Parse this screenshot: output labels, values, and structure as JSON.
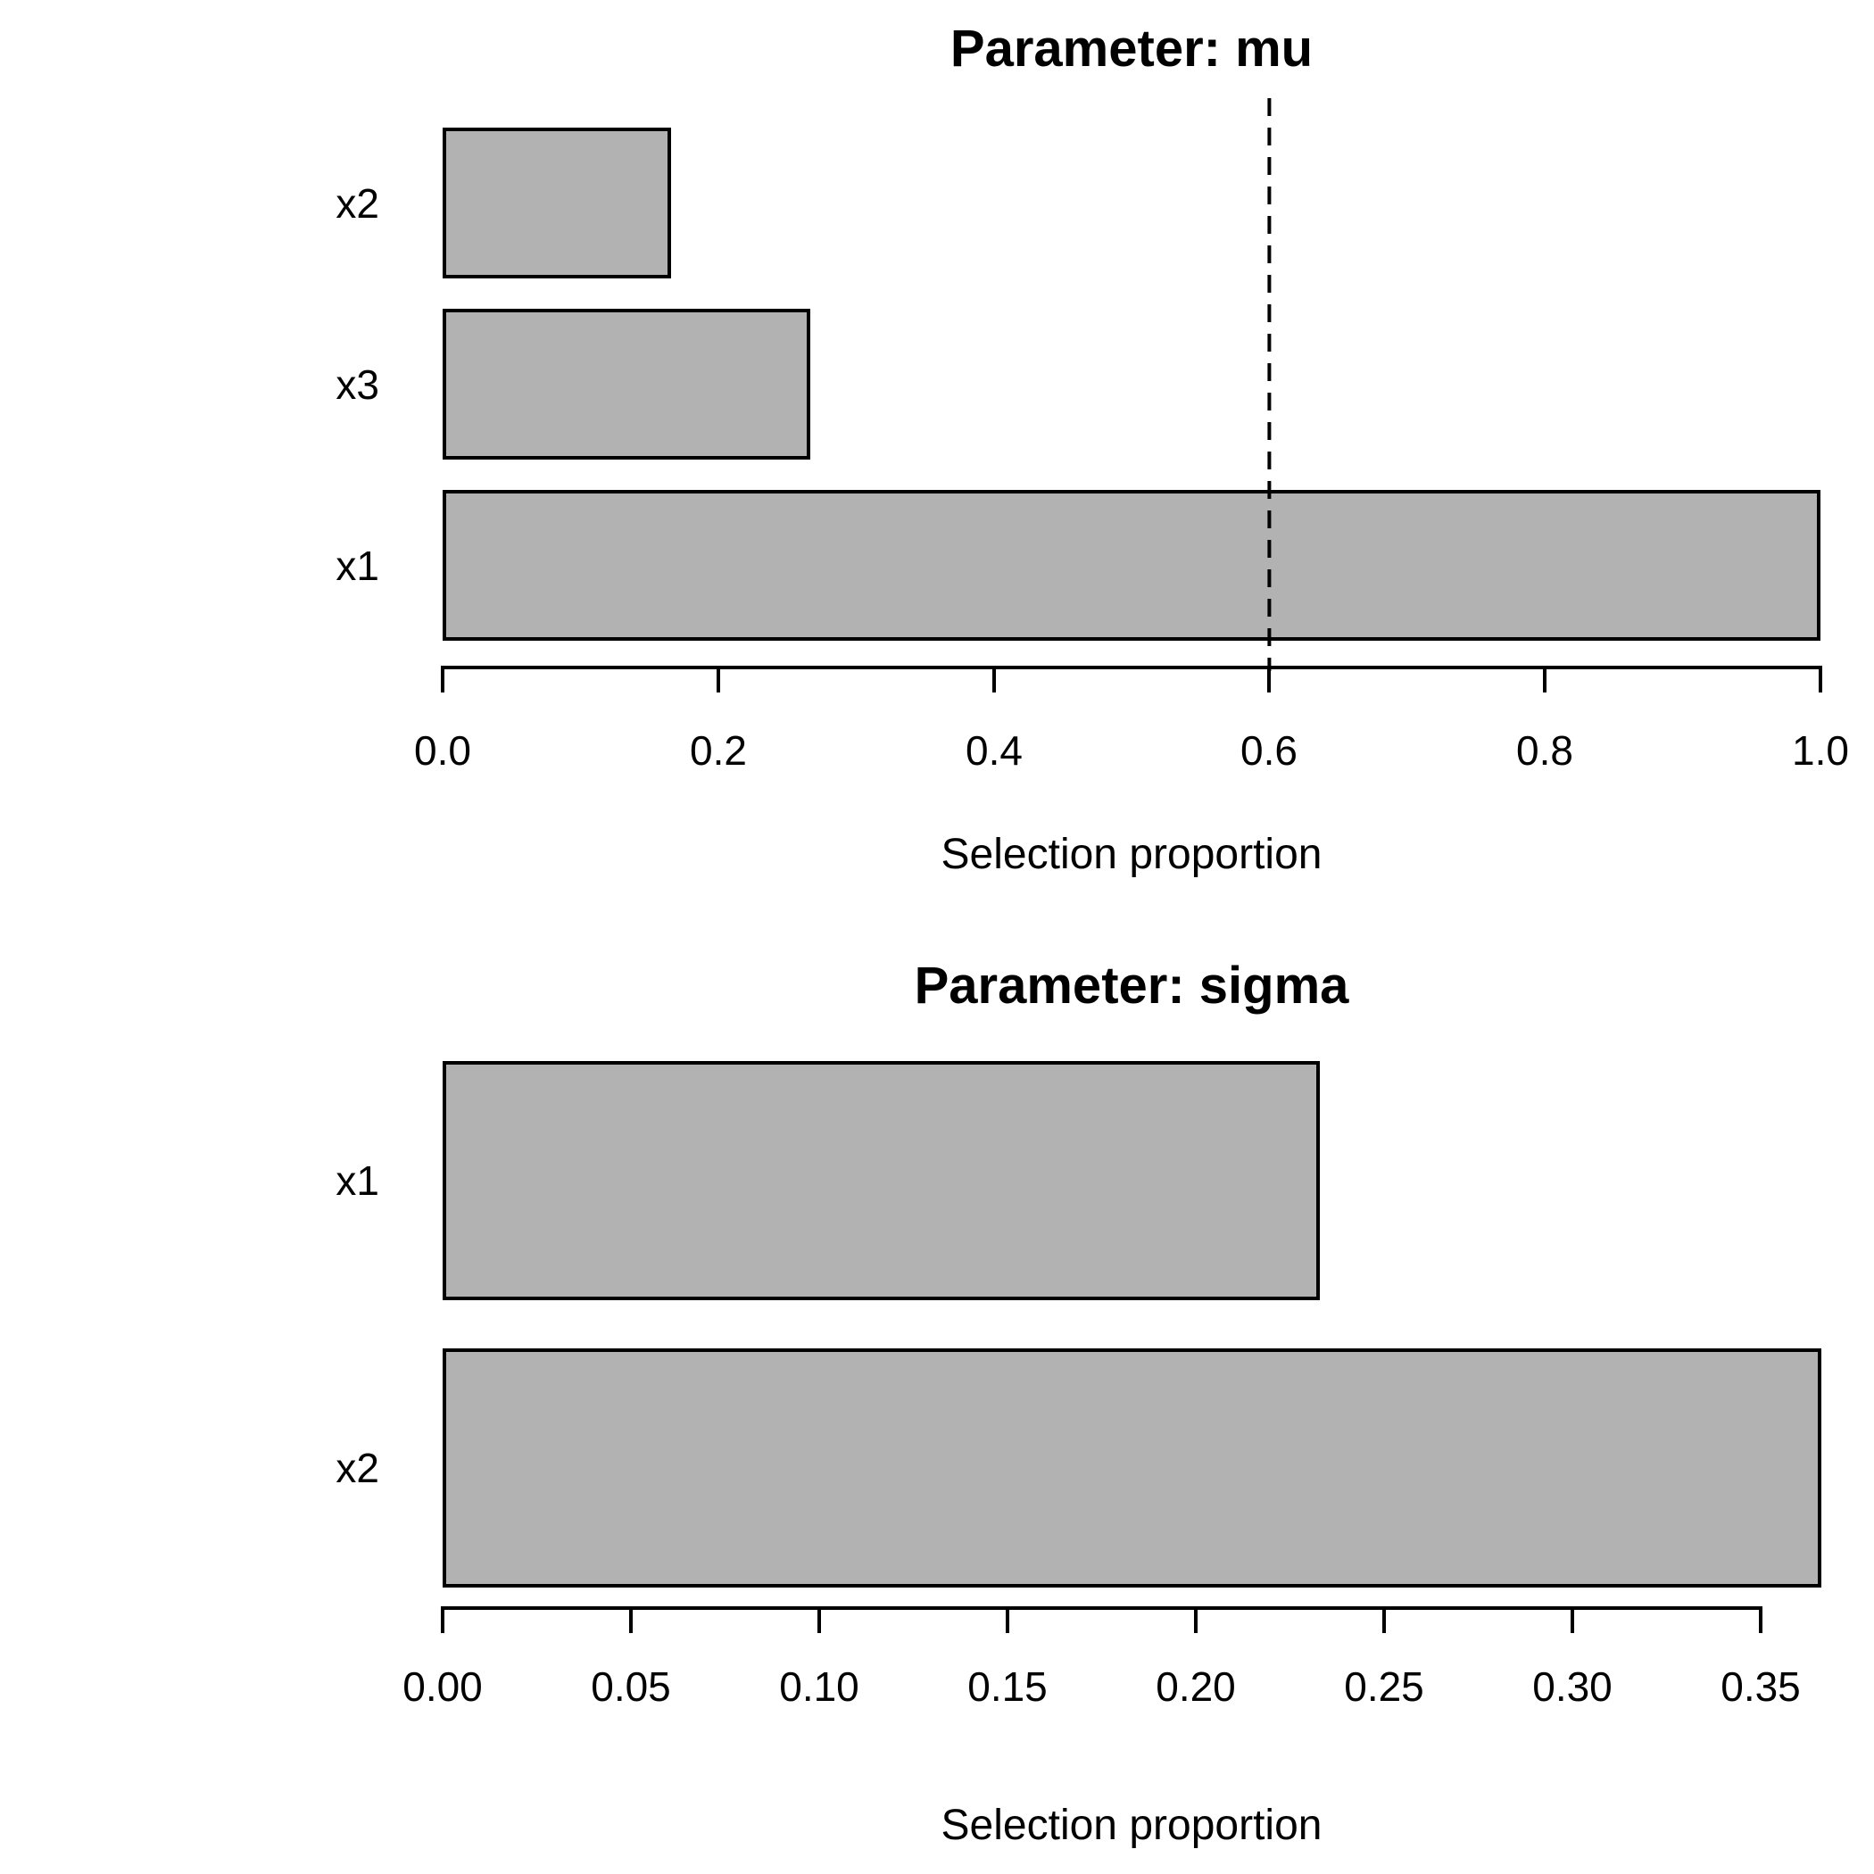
{
  "figure": {
    "background": "#ffffff",
    "text_color": "#000000"
  },
  "chart_data": [
    {
      "type": "bar",
      "orientation": "horizontal",
      "title": "Parameter: mu",
      "xlabel": "Selection proportion",
      "categories": [
        "x2",
        "x3",
        "x1"
      ],
      "values": [
        0.166,
        0.267,
        1.0
      ],
      "xlim": [
        0,
        1.0
      ],
      "xticks": [
        0,
        0.2,
        0.4,
        0.6,
        0.8,
        1.0
      ],
      "xtick_labels": [
        "0.0",
        "0.2",
        "0.4",
        "0.6",
        "0.8",
        "1.0"
      ],
      "reference_line": {
        "value": 0.6,
        "style": "dashed",
        "color": "#000000"
      },
      "bar_fill": "#b2b2b2",
      "bar_border": "#000000",
      "grid": false,
      "legend": null
    },
    {
      "type": "bar",
      "orientation": "horizontal",
      "title": "Parameter: sigma",
      "xlabel": "Selection proportion",
      "categories": [
        "x1",
        "x2"
      ],
      "values": [
        0.233,
        0.366
      ],
      "xlim": [
        0,
        0.35
      ],
      "xticks": [
        0,
        0.05,
        0.1,
        0.15,
        0.2,
        0.25,
        0.3,
        0.35
      ],
      "xtick_labels": [
        "0.00",
        "0.05",
        "0.10",
        "0.15",
        "0.20",
        "0.25",
        "0.30",
        "0.35"
      ],
      "reference_line": null,
      "bar_fill": "#b2b2b2",
      "bar_border": "#000000",
      "grid": false,
      "legend": null
    }
  ]
}
